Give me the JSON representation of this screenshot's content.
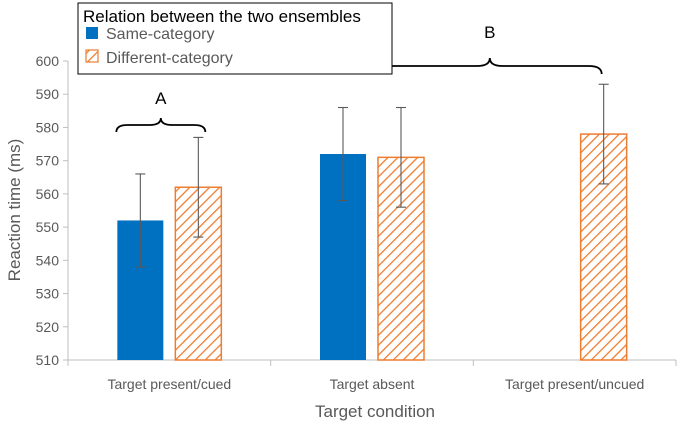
{
  "chart_data": {
    "type": "bar",
    "categories": [
      "Target present/cued",
      "Target absent",
      "Target present/uncued"
    ],
    "series": [
      {
        "name": "Same-category",
        "values": [
          552,
          572,
          null
        ],
        "error": [
          14,
          14,
          null
        ],
        "color": "#0070C0",
        "pattern": "solid"
      },
      {
        "name": "Different-category",
        "values": [
          562,
          571,
          578
        ],
        "error": [
          15,
          15,
          15
        ],
        "color": "#ED7D31",
        "pattern": "diagonal-hatch"
      }
    ],
    "xlabel": "Target condition",
    "ylabel": "Reaction time (ms)",
    "ylim": [
      510,
      600
    ],
    "yticks": [
      510,
      520,
      530,
      540,
      550,
      560,
      570,
      580,
      590,
      600
    ],
    "grid": false,
    "legend": {
      "title": "Relation between the two ensembles",
      "placement": "top-left"
    },
    "annotations": [
      {
        "label": "A",
        "spans": "Target present/cued: Same-category to Different-category"
      },
      {
        "label": "B",
        "spans": "Target absent to Target present/uncued"
      }
    ]
  }
}
